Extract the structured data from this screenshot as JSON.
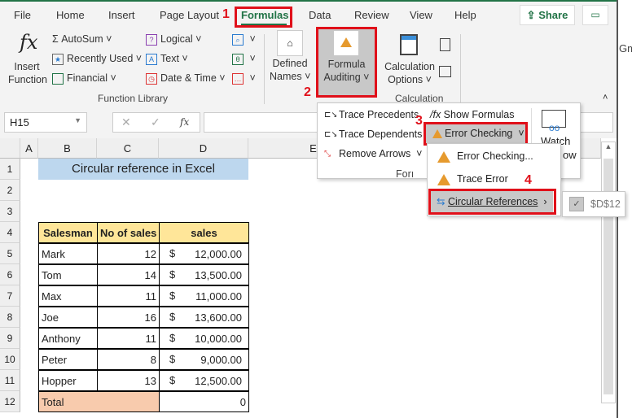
{
  "tabs": [
    "File",
    "Home",
    "Insert",
    "Page Layout",
    "Formulas",
    "Data",
    "Review",
    "View",
    "Help"
  ],
  "active_tab": "Formulas",
  "share_label": "Share",
  "annotations": [
    "1",
    "2",
    "3",
    "4"
  ],
  "ribbon": {
    "insert_function": [
      "Insert",
      "Function"
    ],
    "autosum": "AutoSum",
    "recently_used": "Recently Used",
    "financial": "Financial",
    "logical": "Logical",
    "text": "Text",
    "date_time": "Date & Time",
    "function_library": "Function Library",
    "defined_names": [
      "Defined",
      "Names"
    ],
    "formula_auditing": [
      "Formula",
      "Auditing"
    ],
    "calculation_options": [
      "Calculation",
      "Options"
    ],
    "calculation": "Calculation",
    "cutoff_text": "Gm"
  },
  "formula_bar": {
    "name_box": "H15",
    "fx": "fx",
    "value": ""
  },
  "auditing_menu": {
    "trace_precedents": "Trace Precedents",
    "trace_dependents": "Trace Dependents",
    "remove_arrows": "Remove Arrows",
    "show_formulas": "Show Formulas",
    "error_checking": "Error Checking",
    "watch": "Watch",
    "window_partial": "ow",
    "group_partial": "Forı"
  },
  "error_submenu": {
    "error_checking": "Error Checking...",
    "trace_error": "Trace Error",
    "circular_references": "Circular References"
  },
  "circular_submenu": {
    "ref": "$D$12"
  },
  "columns": [
    "A",
    "B",
    "C",
    "D",
    "E"
  ],
  "rows": [
    "1",
    "2",
    "3",
    "4",
    "5",
    "6",
    "7",
    "8",
    "9",
    "10",
    "11",
    "12"
  ],
  "sheet": {
    "title": "Circular reference in Excel",
    "headers": [
      "Salesman",
      "No of sales",
      "sales"
    ],
    "data": [
      [
        "Mark",
        "12",
        "$",
        "12,000.00"
      ],
      [
        "Tom",
        "14",
        "$",
        "13,500.00"
      ],
      [
        "Max",
        "11",
        "$",
        "11,000.00"
      ],
      [
        "Joe",
        "16",
        "$",
        "13,600.00"
      ],
      [
        "Anthony",
        "11",
        "$",
        "10,000.00"
      ],
      [
        "Peter",
        "8",
        "$",
        "9,000.00"
      ],
      [
        "Hopper",
        "13",
        "$",
        "12,500.00"
      ]
    ],
    "total_label": "Total",
    "total_value": "0"
  },
  "colors": {
    "accent": "#217346",
    "highlight": "#e0101a",
    "title_fill": "#bdd7ee",
    "header_fill": "#ffe699",
    "total_fill": "#f8cbad"
  }
}
